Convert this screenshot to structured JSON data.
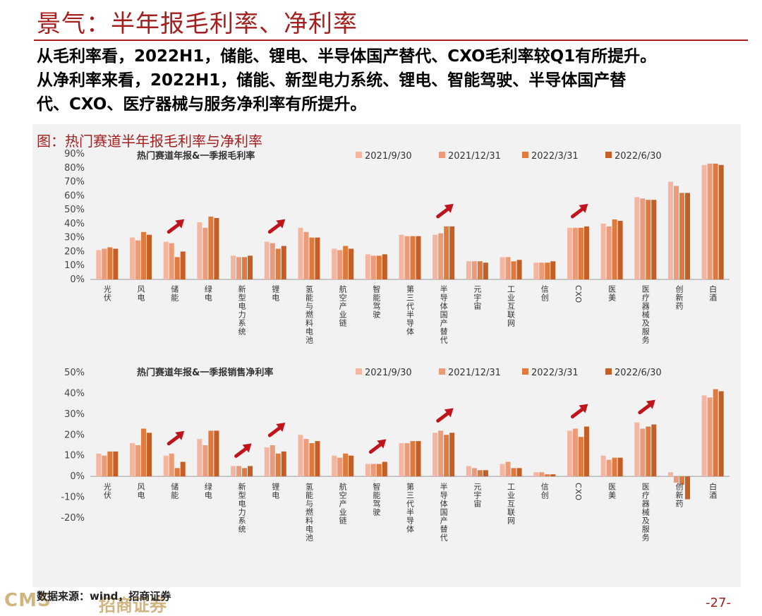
{
  "header": {
    "title": "景气：半年报毛利率、净利率"
  },
  "paragraphs": [
    "从毛利率看，2022H1，储能、锂电、半导体国产替代、CXO毛利率较Q1有所提升。",
    "从净利率来看，2022H1，储能、新型电力系统、锂电、智能驾驶、半导体国产替",
    "代、CXO、医疗器械与服务净利率有所提升。"
  ],
  "figure_caption": "图：热门赛道半年报毛利率与净利率",
  "source": "数据来源：wind，招商证券",
  "logo": {
    "text": "CMS",
    "cn": "招商证券"
  },
  "page_number": "-27-",
  "colors": {
    "s1": "#f4b6a0",
    "s2": "#ed9a78",
    "s3": "#e07a3c",
    "s4": "#c45e24",
    "arrow": "#c0141c",
    "title": "#a51f1f"
  },
  "chart_data": [
    {
      "type": "bar",
      "title": "热门赛道年报&一季报毛利率",
      "categories": [
        "光伏",
        "风电",
        "储能",
        "绿电",
        "新型电力系统",
        "锂电",
        "氢能与燃料电池",
        "航空产业链",
        "智能驾驶",
        "第三代半导体",
        "半导体国产替代",
        "元宇宙",
        "工业互联网",
        "信创",
        "CXO",
        "医美",
        "医疗器械及服务",
        "创新药",
        "白酒"
      ],
      "series": [
        {
          "name": "2021/9/30",
          "values": [
            21,
            30,
            27,
            41,
            17,
            27,
            37,
            22,
            18,
            32,
            32,
            13,
            16,
            12,
            37,
            40,
            59,
            70,
            82
          ]
        },
        {
          "name": "2021/12/31",
          "values": [
            22,
            28,
            26,
            37,
            16,
            26,
            34,
            21,
            17,
            31,
            33,
            13,
            16,
            12,
            37,
            38,
            58,
            67,
            83
          ]
        },
        {
          "name": "2022/3/31",
          "values": [
            23,
            34,
            16,
            45,
            16,
            22,
            30,
            24,
            17,
            31,
            38,
            13,
            13,
            12,
            37,
            43,
            57,
            62,
            83
          ]
        },
        {
          "name": "2022/6/30",
          "values": [
            22,
            32,
            20,
            44,
            17,
            24,
            30,
            22,
            18,
            31,
            38,
            12,
            14,
            13,
            38,
            42,
            57,
            62,
            82
          ]
        }
      ],
      "yticks": [
        "90%",
        "80%",
        "70%",
        "60%",
        "50%",
        "40%",
        "30%",
        "20%",
        "10%",
        "0%"
      ],
      "ylim": [
        0,
        90
      ],
      "arrows_at": [
        "储能",
        "锂电",
        "半导体国产替代",
        "CXO"
      ],
      "legend": "top"
    },
    {
      "type": "bar",
      "title": "热门赛道年报&一季报销售净利率",
      "categories": [
        "光伏",
        "风电",
        "储能",
        "绿电",
        "新型电力系统",
        "锂电",
        "氢能与燃料电池",
        "航空产业链",
        "智能驾驶",
        "第三代半导体",
        "半导体国产替代",
        "元宇宙",
        "工业互联网",
        "信创",
        "CXO",
        "医美",
        "医疗器械及服务",
        "创新药",
        "白酒"
      ],
      "series": [
        {
          "name": "2021/9/30",
          "values": [
            11,
            16,
            10,
            18,
            5,
            14,
            20,
            10,
            6,
            16,
            21,
            5,
            6,
            2,
            22,
            10,
            26,
            2,
            39
          ]
        },
        {
          "name": "2021/12/31",
          "values": [
            10,
            15,
            11,
            15,
            5,
            15,
            18,
            9,
            6,
            16,
            22,
            4,
            7,
            2,
            23,
            8,
            23,
            -3,
            38
          ]
        },
        {
          "name": "2022/3/31",
          "values": [
            12,
            23,
            4,
            22,
            4,
            11,
            16,
            11,
            6,
            17,
            20,
            3,
            4,
            1,
            19,
            9,
            24,
            -4,
            42
          ]
        },
        {
          "name": "2022/6/30",
          "values": [
            12,
            21,
            7,
            22,
            5,
            12,
            17,
            10,
            7,
            17,
            21,
            3,
            4,
            1,
            24,
            9,
            25,
            -11,
            41
          ]
        }
      ],
      "yticks": [
        "50%",
        "40%",
        "30%",
        "20%",
        "10%",
        "0%",
        "-10%",
        "-20%"
      ],
      "ylim": [
        -20,
        50
      ],
      "arrows_at": [
        "储能",
        "新型电力系统",
        "锂电",
        "智能驾驶",
        "半导体国产替代",
        "CXO",
        "医疗器械及服务"
      ],
      "legend": "top"
    }
  ]
}
